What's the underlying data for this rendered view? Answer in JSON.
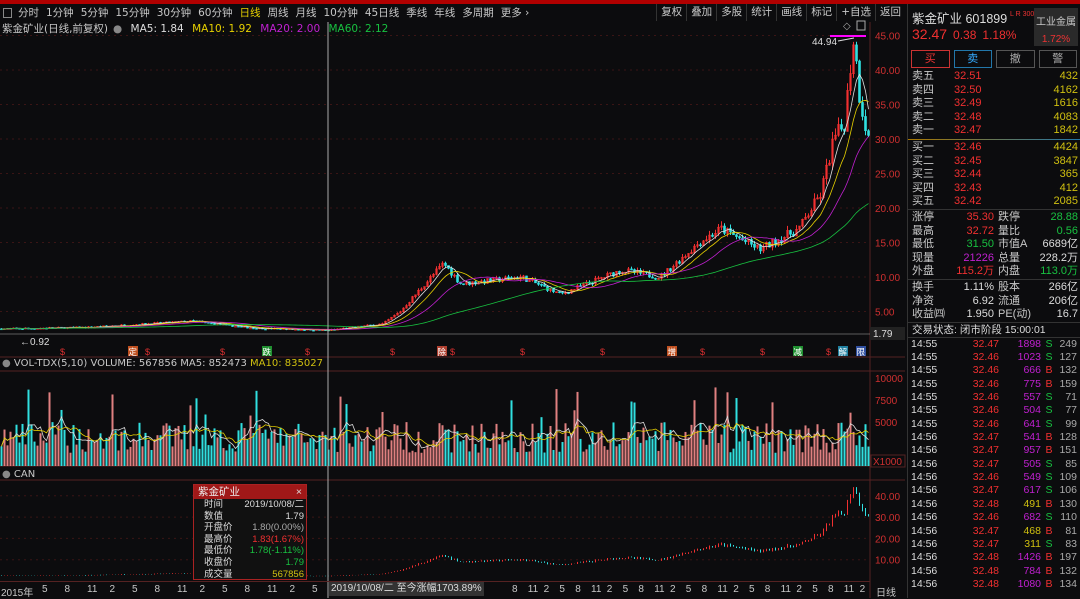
{
  "toolbar": {
    "periods": [
      "分时",
      "1分钟",
      "5分钟",
      "15分钟",
      "30分钟",
      "60分钟",
      "日线",
      "周线",
      "月线",
      "10分钟",
      "45日线",
      "季线",
      "年线",
      "多周期",
      "更多 ›"
    ],
    "active": "日线",
    "right": [
      "复权",
      "叠加",
      "多股",
      "统计",
      "画线",
      "标记",
      "+自选",
      "返回"
    ]
  },
  "legend": {
    "title": "紫金矿业(日线,前复权)",
    "ma5": "MA5: 1.84",
    "ma10": "MA10: 1.92",
    "ma20": "MA20: 2.00",
    "ma60": "MA60: 2.12"
  },
  "vol_legend": {
    "title": "VOL-TDX(5,10)",
    "volume": "VOLUME: 567856",
    "ma5": "MA5: 852473",
    "ma10": "MA10: 835027"
  },
  "can_legend": {
    "title": "CAN"
  },
  "annotations": {
    "high": "44.94",
    "low": "0.92",
    "cross_value": "1.79"
  },
  "events": [
    "定",
    "跌",
    "除",
    "增",
    "减",
    "解",
    "限"
  ],
  "colors": {
    "up": "#f03030",
    "down": "#30e0e0",
    "ma5": "#e0e0e0",
    "ma10": "#e6d000",
    "ma20": "#c020d0",
    "ma60": "#18c040",
    "bg": "#0c0c0e"
  },
  "chart_data": {
    "type": "candlestick",
    "price_axis": {
      "ticks": [
        "45.00",
        "40.00",
        "35.00",
        "30.00",
        "25.00",
        "20.00",
        "15.00",
        "10.00",
        "5.00"
      ],
      "range": [
        0,
        46
      ]
    },
    "vol_axis": {
      "ticks": [
        "10000",
        "7500",
        "5000"
      ],
      "unit": "X1000",
      "range": [
        0,
        10500
      ]
    },
    "can_axis": {
      "ticks": [
        "40.00",
        "30.00",
        "20.00",
        "10.00"
      ],
      "range": [
        0,
        48
      ]
    },
    "x_ticks": [
      "2015年",
      "5",
      "8",
      "11",
      "2",
      "5",
      "8",
      "11",
      "2",
      "5",
      "8",
      "11",
      "2",
      "5",
      "8",
      "11",
      "2",
      "5",
      "8",
      "11",
      "2",
      "5",
      "8",
      "11",
      "2",
      "5",
      "8",
      "11",
      "2",
      "5",
      "8",
      "11",
      "2",
      "5",
      "8",
      "11",
      "2"
    ],
    "period": "日线",
    "price_keypoints": [
      [
        0,
        2.5
      ],
      [
        0.1,
        2.7
      ],
      [
        0.22,
        3.6
      ],
      [
        0.29,
        2.6
      ],
      [
        0.377,
        2.3
      ],
      [
        0.44,
        3.2
      ],
      [
        0.46,
        5
      ],
      [
        0.51,
        12
      ],
      [
        0.53,
        9
      ],
      [
        0.6,
        10
      ],
      [
        0.645,
        7.5
      ],
      [
        0.715,
        11
      ],
      [
        0.76,
        10
      ],
      [
        0.805,
        15
      ],
      [
        0.83,
        17
      ],
      [
        0.875,
        14
      ],
      [
        0.92,
        17
      ],
      [
        0.945,
        22
      ],
      [
        0.96,
        30
      ],
      [
        0.972,
        32
      ],
      [
        0.983,
        44.94
      ],
      [
        0.99,
        36
      ],
      [
        1,
        30
      ]
    ]
  },
  "tooltip": {
    "title": "紫金矿业",
    "rows": [
      [
        "时间",
        "2019/10/08/二"
      ],
      [
        "数值",
        "1.79"
      ],
      [
        "开盘价",
        "1.80(0.00%)"
      ],
      [
        "最高价",
        "1.83(1.67%)"
      ],
      [
        "最低价",
        "1.78(-1.11%)"
      ],
      [
        "收盘价",
        "1.79"
      ],
      [
        "成交量",
        "567856"
      ]
    ]
  },
  "crosshair_label": "2019/10/08/二  至今涨幅1703.89%",
  "quote": {
    "name": "紫金矿业 601899",
    "tags": "L R 300",
    "price": "32.47",
    "change": "0.38",
    "pct": "1.18%",
    "industry": "工业金属",
    "industry_pct": "1.72%"
  },
  "buttons": [
    "买",
    "卖",
    "撤",
    "警"
  ],
  "asks": [
    [
      "卖五",
      "32.51",
      "432"
    ],
    [
      "卖四",
      "32.50",
      "4162"
    ],
    [
      "卖三",
      "32.49",
      "1616"
    ],
    [
      "卖二",
      "32.48",
      "4083"
    ],
    [
      "卖一",
      "32.47",
      "1842"
    ]
  ],
  "bids": [
    [
      "买一",
      "32.46",
      "4424"
    ],
    [
      "买二",
      "32.45",
      "3847"
    ],
    [
      "买三",
      "32.44",
      "365"
    ],
    [
      "买四",
      "32.43",
      "412"
    ],
    [
      "买五",
      "32.42",
      "2085"
    ]
  ],
  "stats": [
    [
      "涨停",
      "35.30",
      "跌停",
      "28.88"
    ],
    [
      "最高",
      "32.72",
      "量比",
      "0.56"
    ],
    [
      "最低",
      "31.50",
      "市值A",
      "6689亿"
    ],
    [
      "现量",
      "21226",
      "总量",
      "228.2万"
    ],
    [
      "外盘",
      "115.2万",
      "内盘",
      "113.0万"
    ]
  ],
  "stats2": [
    [
      "换手",
      "1.11%",
      "股本",
      "266亿"
    ],
    [
      "净资",
      "6.92",
      "流通",
      "206亿"
    ],
    [
      "收益㈣",
      "1.950",
      "PE(动)",
      "16.7"
    ]
  ],
  "trade_status": "交易状态: 闭市阶段 15:00:01",
  "trades": [
    [
      "14:55",
      "32.47",
      "1898",
      "S",
      "249"
    ],
    [
      "14:55",
      "32.46",
      "1023",
      "S",
      "127"
    ],
    [
      "14:55",
      "32.46",
      "666",
      "B",
      "132"
    ],
    [
      "14:55",
      "32.46",
      "775",
      "B",
      "159"
    ],
    [
      "14:55",
      "32.46",
      "557",
      "S",
      "71"
    ],
    [
      "14:55",
      "32.46",
      "504",
      "S",
      "77"
    ],
    [
      "14:55",
      "32.46",
      "641",
      "S",
      "99"
    ],
    [
      "14:56",
      "32.47",
      "541",
      "B",
      "128"
    ],
    [
      "14:56",
      "32.47",
      "957",
      "B",
      "151"
    ],
    [
      "14:56",
      "32.47",
      "505",
      "S",
      "85"
    ],
    [
      "14:56",
      "32.46",
      "549",
      "S",
      "109"
    ],
    [
      "14:56",
      "32.47",
      "617",
      "S",
      "106"
    ],
    [
      "14:56",
      "32.48",
      "491",
      "B",
      "130"
    ],
    [
      "14:56",
      "32.46",
      "682",
      "S",
      "110"
    ],
    [
      "14:56",
      "32.47",
      "468",
      "B",
      "81"
    ],
    [
      "14:56",
      "32.47",
      "311",
      "S",
      "83"
    ],
    [
      "14:56",
      "32.48",
      "1426",
      "B",
      "197"
    ],
    [
      "14:56",
      "32.48",
      "784",
      "B",
      "132"
    ],
    [
      "14:56",
      "32.48",
      "1080",
      "B",
      "134"
    ]
  ]
}
